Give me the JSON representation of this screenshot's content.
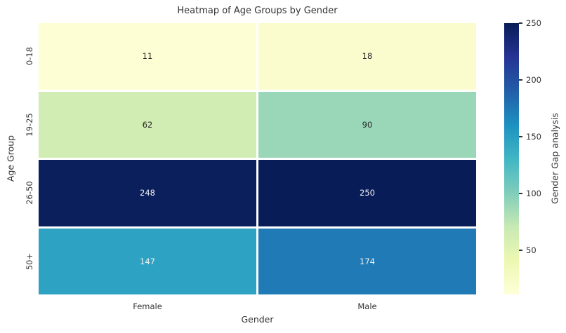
{
  "chart_data": {
    "type": "heatmap",
    "title": "Heatmap of Age Groups by Gender",
    "xlabel": "Gender",
    "ylabel": "Age Group",
    "columns": [
      "Female",
      "Male"
    ],
    "rows": [
      "0-18",
      "19-25",
      "26-50",
      "50+"
    ],
    "values": [
      [
        11,
        18
      ],
      [
        62,
        90
      ],
      [
        248,
        250
      ],
      [
        147,
        174
      ]
    ],
    "cell_colors": [
      [
        "#fdfed4",
        "#fafccd"
      ],
      [
        "#d2edb3",
        "#99d7b8"
      ],
      [
        "#0a1f5c",
        "#081d58"
      ],
      [
        "#2da2c2",
        "#1f7ab5"
      ]
    ],
    "cell_text_colors": [
      [
        "#262626",
        "#262626"
      ],
      [
        "#262626",
        "#262626"
      ],
      [
        "#f2f2f2",
        "#f2f2f2"
      ],
      [
        "#f2f2f2",
        "#f2f2f2"
      ]
    ],
    "colorbar": {
      "label": "Gender Gap analysis",
      "ticks": [
        50,
        100,
        150,
        200,
        250
      ],
      "vmin": 11,
      "vmax": 250,
      "colormap": "YlGnBu",
      "colormap_stops": [
        "#ffffd9",
        "#edf8b1",
        "#c7e9b4",
        "#7fcdbb",
        "#41b6c4",
        "#1d91c0",
        "#225ea8",
        "#253494",
        "#081d58"
      ]
    },
    "grid_line_color": "#ffffff",
    "background_color": "#ffffff"
  }
}
